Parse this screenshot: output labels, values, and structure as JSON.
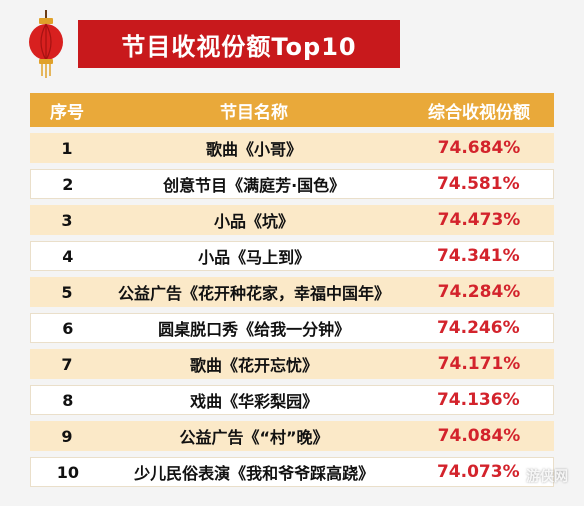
{
  "title": "节目收视份额Top10",
  "table": {
    "headers": [
      "序号",
      "节目名称",
      "综合收视份额"
    ],
    "rows": [
      {
        "rank": "1",
        "name": "歌曲《小哥》",
        "share": "74.684%"
      },
      {
        "rank": "2",
        "name": "创意节目《满庭芳·国色》",
        "share": "74.581%"
      },
      {
        "rank": "3",
        "name": "小品《坑》",
        "share": "74.473%"
      },
      {
        "rank": "4",
        "name": "小品《马上到》",
        "share": "74.341%"
      },
      {
        "rank": "5",
        "name": "公益广告《花开种花家，幸福中国年》",
        "share": "74.284%"
      },
      {
        "rank": "6",
        "name": "圆桌脱口秀《给我一分钟》",
        "share": "74.246%"
      },
      {
        "rank": "7",
        "name": "歌曲《花开忘忧》",
        "share": "74.171%"
      },
      {
        "rank": "8",
        "name": "戏曲《华彩梨园》",
        "share": "74.136%"
      },
      {
        "rank": "9",
        "name": "公益广告《“村”晚》",
        "share": "74.084%"
      },
      {
        "rank": "10",
        "name": "少儿民俗表演《我和爷爷踩高跷》",
        "share": "74.073%"
      }
    ]
  },
  "watermark": "游侠网",
  "colors": {
    "banner": "#c8191c",
    "header": "#e9a93a",
    "value": "#d3232c",
    "row_alt": "#fbe9c8"
  },
  "icons": {
    "lantern": "lantern-icon"
  }
}
